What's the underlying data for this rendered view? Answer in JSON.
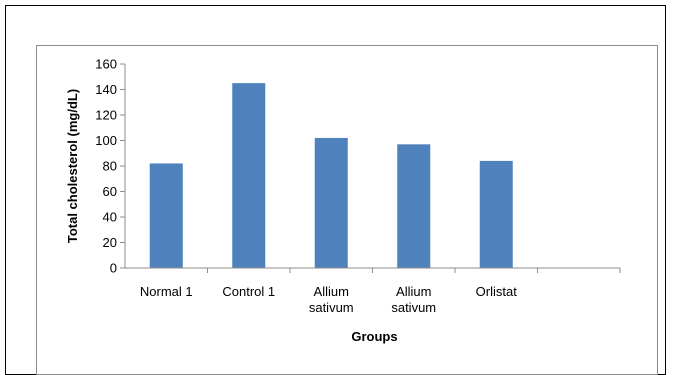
{
  "chart_data": {
    "type": "bar",
    "categories": [
      [
        "Normal 1"
      ],
      [
        "Control 1"
      ],
      [
        "Allium",
        "sativum"
      ],
      [
        "Allium",
        "sativum"
      ],
      [
        "Orlistat"
      ],
      [
        ""
      ]
    ],
    "values": [
      82,
      145,
      102,
      97,
      84,
      null
    ],
    "xlabel": "Groups",
    "ylabel": "Total cholesterol (mg/dL)",
    "ylim": [
      0,
      160
    ],
    "yticks": [
      "0",
      "20",
      "40",
      "60",
      "80",
      "100",
      "120",
      "140",
      "160"
    ],
    "grid": false,
    "legend": "none",
    "bar_color": "#4F81BD",
    "axis_color": "#8C8C8C"
  }
}
